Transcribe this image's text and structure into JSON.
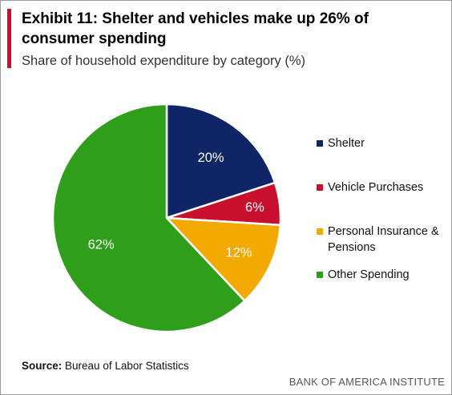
{
  "header": {
    "title": "Exhibit 11: Shelter and vehicles make up 26% of consumer spending",
    "subtitle": "Share of household expenditure by category (%)"
  },
  "footer": {
    "source_label": "Source:",
    "source_text": "Bureau of Labor Statistics",
    "brand": "BANK OF AMERICA INSTITUTE"
  },
  "colors": {
    "accent": "#c8102e",
    "shelter": "#0f2566",
    "vehicle": "#c8102e",
    "insurance": "#f2a900",
    "other": "#2f9e1a"
  },
  "chart_data": {
    "type": "pie",
    "title": "Share of household expenditure by category (%)",
    "slices": [
      {
        "name": "Shelter",
        "value": 20,
        "label": "20%",
        "color": "#0f2566"
      },
      {
        "name": "Vehicle Purchases",
        "value": 6,
        "label": "6%",
        "color": "#c8102e"
      },
      {
        "name": "Personal Insurance & Pensions",
        "value": 12,
        "label": "12%",
        "color": "#f2a900"
      },
      {
        "name": "Other Spending",
        "value": 62,
        "label": "62%",
        "color": "#2f9e1a"
      }
    ],
    "start_angle_deg": 0,
    "direction": "clockwise",
    "legend_position": "right"
  }
}
